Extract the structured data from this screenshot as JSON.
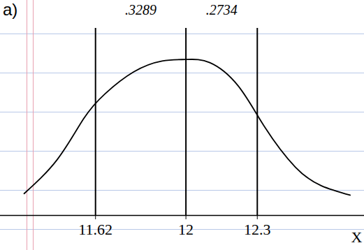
{
  "chart_data": {
    "type": "line",
    "title": "a)",
    "x_label": "X",
    "x": [
      11.32,
      11.46,
      11.57,
      11.66,
      11.78,
      11.9,
      12.0,
      12.1,
      12.22,
      12.33,
      12.46,
      12.57,
      12.69
    ],
    "values": [
      0.14,
      0.36,
      0.62,
      0.78,
      0.92,
      0.99,
      1.0,
      0.98,
      0.83,
      0.57,
      0.31,
      0.19,
      0.13
    ],
    "xlim": [
      11.22,
      12.75
    ],
    "ylim": [
      0,
      1.2
    ],
    "xticks": [
      11.62,
      12,
      12.3
    ],
    "grid": true,
    "tick_labels": "x",
    "color": "#000000",
    "annotations": [
      ".3289",
      ".2734"
    ]
  }
}
